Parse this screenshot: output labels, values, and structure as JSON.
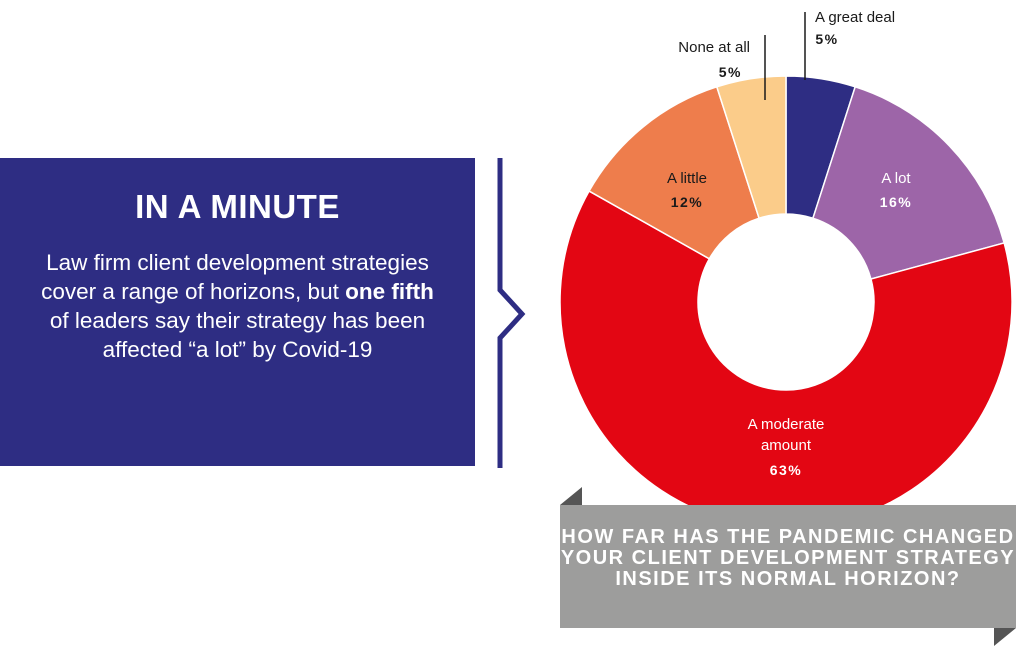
{
  "panel": {
    "title": "IN A MINUTE",
    "body_before": "Law firm client development strategies cover a range of horizons, but ",
    "body_bold": "one fifth",
    "body_after": " of leaders say their strategy has been affected “a lot” by Covid-19"
  },
  "question": "HOW FAR HAS THE PANDEMIC CHANGED YOUR CLIENT DEVELOPMENT STRATEGY INSIDE ITS NORMAL HORIZON?",
  "chart_data": {
    "type": "pie",
    "donut": true,
    "title": "",
    "slices": [
      {
        "label": "A great deal",
        "value": 5,
        "value_label": "5%",
        "color": "#2e2d83"
      },
      {
        "label": "A lot",
        "value": 16,
        "value_label": "16%",
        "color": "#9d65a8"
      },
      {
        "label": "A moderate amount",
        "value": 63,
        "value_label": "63%",
        "color": "#e30613"
      },
      {
        "label": "A little",
        "value": 12,
        "value_label": "12%",
        "color": "#ee7d4c"
      },
      {
        "label": "None at all",
        "value": 5,
        "value_label": "5%",
        "color": "#fbcc8a"
      }
    ]
  }
}
